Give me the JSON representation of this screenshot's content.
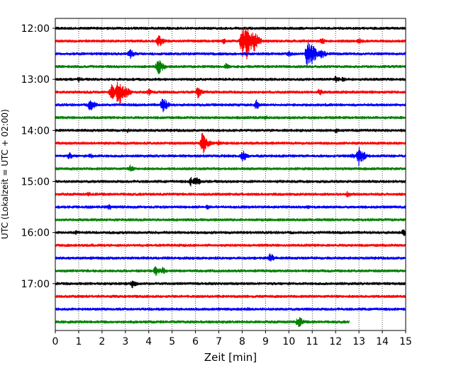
{
  "chart_data": {
    "type": "line",
    "title": "",
    "xlabel": "Zeit  [min]",
    "ylabel": "UTC (Lokalzeit = UTC + 02:00)",
    "xlim": [
      0,
      15
    ],
    "x_ticks": [
      0,
      1,
      2,
      3,
      4,
      5,
      6,
      7,
      8,
      9,
      10,
      11,
      12,
      13,
      14,
      15
    ],
    "y_ticks": [
      "12:00",
      "13:00",
      "14:00",
      "15:00",
      "16:00",
      "17:00"
    ],
    "grid": "vertical dotted",
    "trace_interval_min": 15,
    "color_cycle": [
      "#000000",
      "#ff0000",
      "#0000ff",
      "#008000"
    ],
    "traces": [
      {
        "start": "12:00",
        "end_min": 15,
        "events": []
      },
      {
        "start": "12:15",
        "end_min": 15,
        "events": [
          {
            "t": 4.4,
            "amp": 11
          },
          {
            "t": 7.2,
            "amp": 5
          },
          {
            "t": 8.0,
            "amp": 26
          },
          {
            "t": 8.2,
            "amp": 30
          },
          {
            "t": 8.5,
            "amp": 18
          },
          {
            "t": 11.4,
            "amp": 6
          },
          {
            "t": 13.0,
            "amp": 5
          }
        ]
      },
      {
        "start": "12:30",
        "end_min": 15,
        "events": [
          {
            "t": 3.2,
            "amp": 8
          },
          {
            "t": 10.0,
            "amp": 5
          },
          {
            "t": 10.8,
            "amp": 22
          },
          {
            "t": 11.0,
            "amp": 16
          },
          {
            "t": 11.4,
            "amp": 8
          }
        ]
      },
      {
        "start": "12:45",
        "end_min": 15,
        "events": [
          {
            "t": 4.4,
            "amp": 14
          },
          {
            "t": 7.3,
            "amp": 5
          }
        ]
      },
      {
        "start": "13:00",
        "end_min": 15,
        "events": [
          {
            "t": 1.0,
            "amp": 5
          },
          {
            "t": 12.0,
            "amp": 6
          },
          {
            "t": 12.3,
            "amp": 4
          }
        ]
      },
      {
        "start": "13:15",
        "end_min": 15,
        "events": [
          {
            "t": 2.4,
            "amp": 14
          },
          {
            "t": 2.7,
            "amp": 24
          },
          {
            "t": 3.0,
            "amp": 10
          },
          {
            "t": 4.0,
            "amp": 6
          },
          {
            "t": 6.1,
            "amp": 9
          },
          {
            "t": 11.3,
            "amp": 6
          }
        ]
      },
      {
        "start": "13:30",
        "end_min": 15,
        "events": [
          {
            "t": 1.5,
            "amp": 11
          },
          {
            "t": 4.6,
            "amp": 13
          },
          {
            "t": 8.6,
            "amp": 8
          }
        ]
      },
      {
        "start": "13:45",
        "end_min": 15,
        "events": [
          {
            "t": 9.0,
            "amp": 4
          }
        ]
      },
      {
        "start": "14:00",
        "end_min": 15,
        "events": [
          {
            "t": 3.1,
            "amp": 4
          },
          {
            "t": 12.0,
            "amp": 5
          }
        ]
      },
      {
        "start": "14:15",
        "end_min": 15,
        "events": [
          {
            "t": 6.3,
            "amp": 18
          },
          {
            "t": 7.0,
            "amp": 5
          }
        ]
      },
      {
        "start": "14:30",
        "end_min": 15,
        "events": [
          {
            "t": 0.6,
            "amp": 6
          },
          {
            "t": 1.5,
            "amp": 5
          },
          {
            "t": 8.0,
            "amp": 10
          },
          {
            "t": 12.7,
            "amp": 5
          },
          {
            "t": 13.0,
            "amp": 16
          }
        ]
      },
      {
        "start": "14:45",
        "end_min": 15,
        "events": [
          {
            "t": 3.2,
            "amp": 6
          }
        ]
      },
      {
        "start": "15:00",
        "end_min": 15,
        "events": [
          {
            "t": 5.8,
            "amp": 7
          },
          {
            "t": 6.0,
            "amp": 9
          }
        ]
      },
      {
        "start": "15:15",
        "end_min": 15,
        "events": [
          {
            "t": 1.4,
            "amp": 4
          },
          {
            "t": 12.5,
            "amp": 5
          }
        ]
      },
      {
        "start": "15:30",
        "end_min": 15,
        "events": [
          {
            "t": 2.3,
            "amp": 5
          },
          {
            "t": 6.5,
            "amp": 4
          },
          {
            "t": 10.8,
            "amp": 4
          }
        ]
      },
      {
        "start": "15:45",
        "end_min": 15,
        "events": []
      },
      {
        "start": "16:00",
        "end_min": 15,
        "events": [
          {
            "t": 0.9,
            "amp": 4
          },
          {
            "t": 14.9,
            "amp": 6
          }
        ]
      },
      {
        "start": "16:15",
        "end_min": 15,
        "events": []
      },
      {
        "start": "16:30",
        "end_min": 15,
        "events": [
          {
            "t": 9.2,
            "amp": 8
          }
        ]
      },
      {
        "start": "16:45",
        "end_min": 15,
        "events": [
          {
            "t": 4.3,
            "amp": 8
          },
          {
            "t": 4.6,
            "amp": 6
          }
        ]
      },
      {
        "start": "17:00",
        "end_min": 15,
        "events": [
          {
            "t": 3.3,
            "amp": 7
          }
        ]
      },
      {
        "start": "17:15",
        "end_min": 15,
        "events": []
      },
      {
        "start": "17:30",
        "end_min": 15,
        "events": [
          {
            "t": 8.2,
            "amp": 4
          }
        ]
      },
      {
        "start": "17:45",
        "end_min": 12.6,
        "events": [
          {
            "t": 10.4,
            "amp": 10
          }
        ]
      }
    ]
  }
}
